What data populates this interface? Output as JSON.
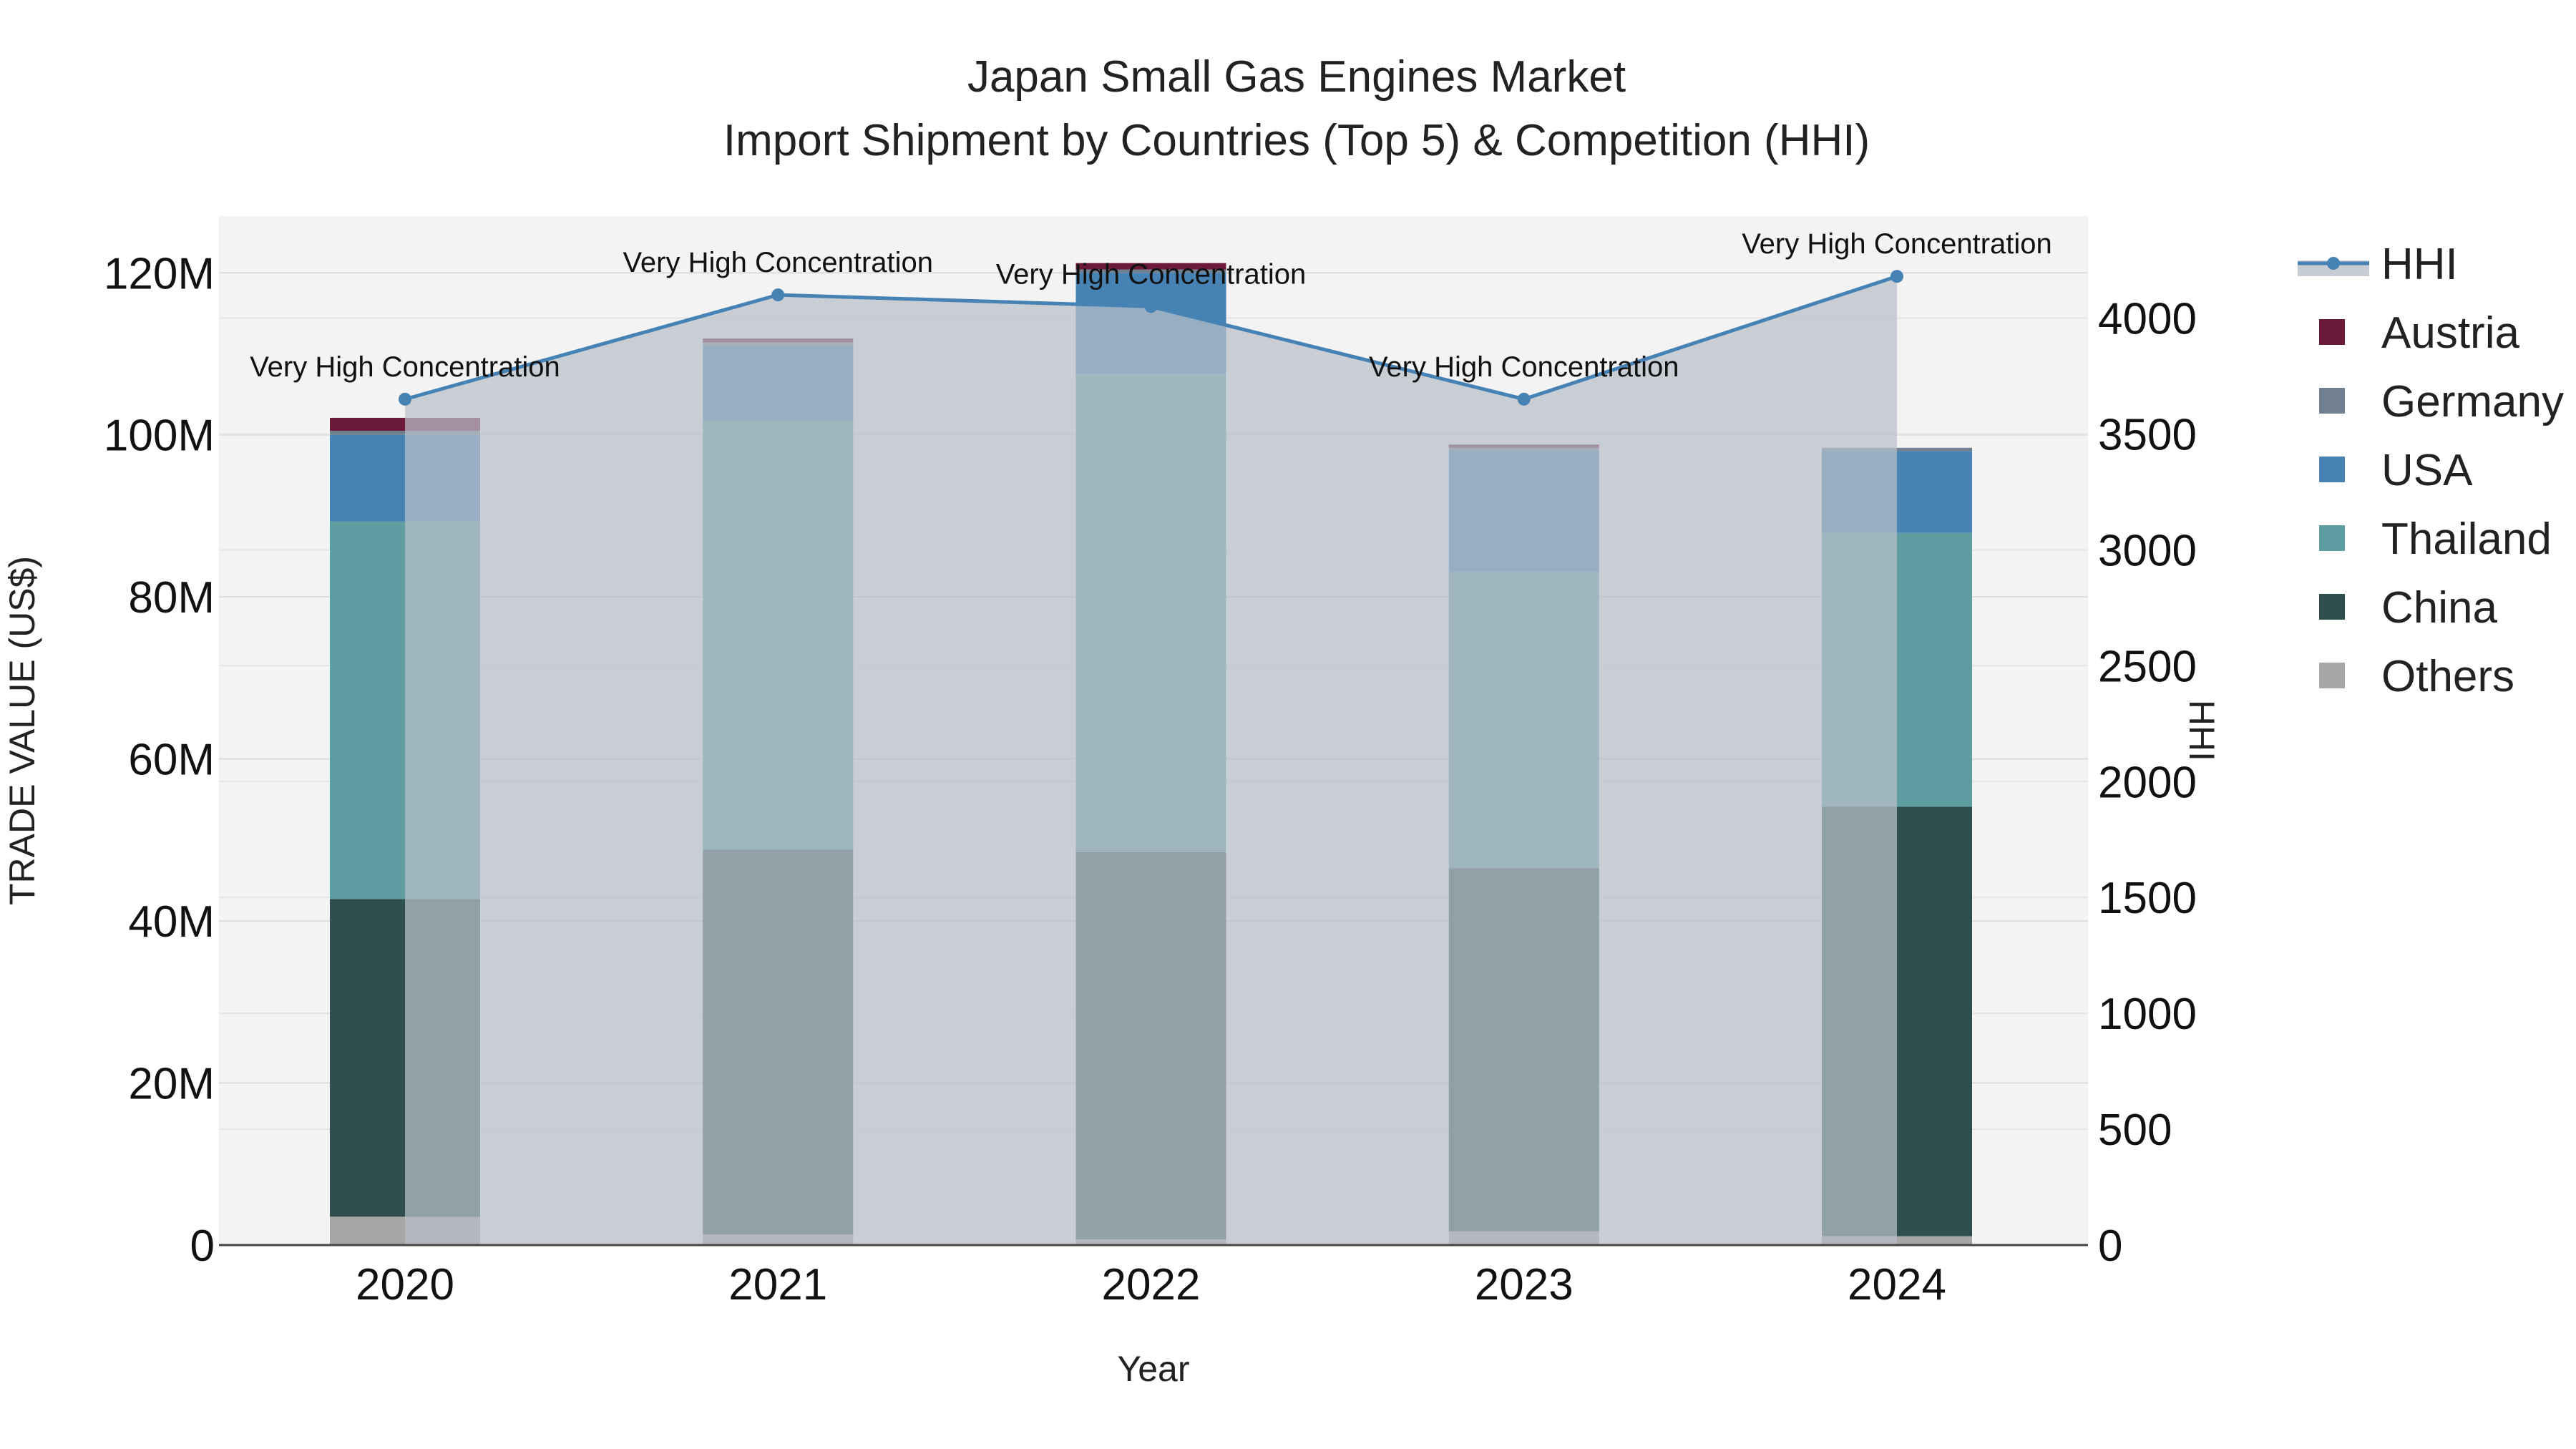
{
  "chart_data": {
    "type": "bar",
    "title_line1": "Japan Small Gas Engines Market",
    "title_line2": "Import Shipment by Countries (Top 5) & Competition (HHI)",
    "xlabel": "Year",
    "ylabel": "TRADE VALUE (US$)",
    "y2label": "HHI",
    "categories": [
      "2020",
      "2021",
      "2022",
      "2023",
      "2024"
    ],
    "ylim": [
      0,
      127000000
    ],
    "y_ticks": [
      0,
      20000000,
      40000000,
      60000000,
      80000000,
      100000000,
      120000000
    ],
    "y_tick_labels": [
      "0",
      "20M",
      "40M",
      "60M",
      "80M",
      "100M",
      "120M"
    ],
    "y2lim": [
      0,
      4440
    ],
    "y2_ticks": [
      0,
      500,
      1000,
      1500,
      2000,
      2500,
      3000,
      3500,
      4000
    ],
    "y2_tick_labels": [
      "0",
      "500",
      "1000",
      "1500",
      "2000",
      "2500",
      "3000",
      "3500",
      "4000"
    ],
    "series": [
      {
        "name": "Others",
        "color": "#a6a6a6",
        "values": [
          3500000,
          1300000,
          700000,
          1700000,
          1100000
        ]
      },
      {
        "name": "China",
        "color": "#2f4f4f",
        "values": [
          39200000,
          47500000,
          47800000,
          44800000,
          53000000
        ]
      },
      {
        "name": "Thailand",
        "color": "#5f9ea0",
        "values": [
          46600000,
          52900000,
          59000000,
          36600000,
          33800000
        ]
      },
      {
        "name": "USA",
        "color": "#4682b4",
        "values": [
          10700000,
          9300000,
          12500000,
          15000000,
          10100000
        ]
      },
      {
        "name": "Germany",
        "color": "#708090",
        "values": [
          500000,
          400000,
          400000,
          300000,
          400000
        ]
      },
      {
        "name": "Austria",
        "color": "#6b1a3a",
        "values": [
          1600000,
          500000,
          800000,
          400000,
          0
        ]
      }
    ],
    "hhi": {
      "name": "HHI",
      "color": "#4682b4",
      "values": [
        3650,
        4100,
        4050,
        3650,
        4180
      ],
      "labels": [
        "Very High Concentration",
        "Very High Concentration",
        "Very High Concentration",
        "Very High Concentration",
        "Very High Concentration"
      ]
    },
    "legend_order": [
      "HHI",
      "Austria",
      "Germany",
      "USA",
      "Thailand",
      "China",
      "Others"
    ],
    "legend_position": "right",
    "grid": true,
    "plot_background": "#f3f3f3",
    "overlay_color": "#b8bfc9"
  }
}
